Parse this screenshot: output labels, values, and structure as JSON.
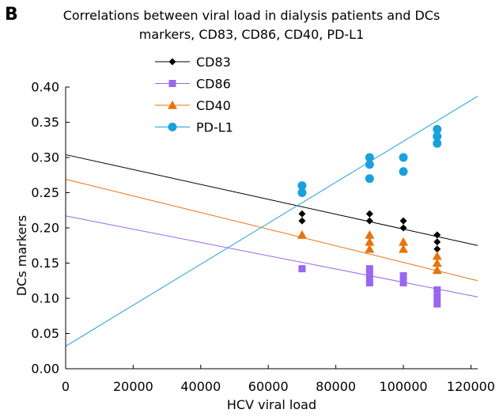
{
  "panel_label": "B",
  "chart_data": {
    "type": "scatter",
    "title_lines": [
      "Correlations between viral load in dialysis patients and DCs",
      "markers, CD83, CD86, CD40, PD-L1"
    ],
    "xlabel": "HCV viral load",
    "ylabel": "DCs markers",
    "xlim": [
      0,
      122000
    ],
    "ylim": [
      0,
      0.4
    ],
    "x_ticks": [
      0,
      20000,
      40000,
      60000,
      80000,
      100000,
      120000
    ],
    "x_tick_labels": [
      "0",
      "20000",
      "40000",
      "60000",
      "80000",
      "100000",
      "120000"
    ],
    "y_ticks": [
      0,
      0.05,
      0.1,
      0.15,
      0.2,
      0.25,
      0.3,
      0.35,
      0.4
    ],
    "y_tick_labels": [
      "0.00",
      "0.05",
      "0.10",
      "0.15",
      "0.20",
      "0.25",
      "0.30",
      "0.35",
      "0.40"
    ],
    "grid": false,
    "legend_position": "top-left",
    "series": [
      {
        "name": "CD83",
        "marker": "diamond",
        "color": "#000000",
        "points": [
          [
            70000,
            0.22
          ],
          [
            70000,
            0.21
          ],
          [
            90000,
            0.22
          ],
          [
            90000,
            0.22
          ],
          [
            90000,
            0.21
          ],
          [
            100000,
            0.21
          ],
          [
            100000,
            0.2
          ],
          [
            110000,
            0.19
          ],
          [
            110000,
            0.18
          ],
          [
            110000,
            0.17
          ]
        ],
        "trend": [
          [
            0,
            0.304
          ],
          [
            122000,
            0.175
          ]
        ]
      },
      {
        "name": "CD86",
        "marker": "square",
        "color": "#9966ee",
        "points": [
          [
            70000,
            0.142
          ],
          [
            90000,
            0.142
          ],
          [
            90000,
            0.132
          ],
          [
            90000,
            0.122
          ],
          [
            100000,
            0.132
          ],
          [
            100000,
            0.122
          ],
          [
            110000,
            0.112
          ],
          [
            110000,
            0.102
          ],
          [
            110000,
            0.092
          ]
        ],
        "trend": [
          [
            0,
            0.217
          ],
          [
            122000,
            0.102
          ]
        ]
      },
      {
        "name": "CD40",
        "marker": "triangle",
        "color": "#e8720c",
        "points": [
          [
            70000,
            0.19
          ],
          [
            90000,
            0.19
          ],
          [
            90000,
            0.18
          ],
          [
            90000,
            0.17
          ],
          [
            100000,
            0.18
          ],
          [
            100000,
            0.17
          ],
          [
            110000,
            0.16
          ],
          [
            110000,
            0.15
          ],
          [
            110000,
            0.14
          ]
        ],
        "trend": [
          [
            0,
            0.269
          ],
          [
            122000,
            0.125
          ]
        ]
      },
      {
        "name": "PD-L1",
        "marker": "circle",
        "color": "#1aa0dd",
        "points": [
          [
            70000,
            0.26
          ],
          [
            70000,
            0.25
          ],
          [
            90000,
            0.3
          ],
          [
            90000,
            0.29
          ],
          [
            90000,
            0.27
          ],
          [
            100000,
            0.3
          ],
          [
            100000,
            0.28
          ],
          [
            110000,
            0.34
          ],
          [
            110000,
            0.33
          ],
          [
            110000,
            0.32
          ]
        ],
        "trend": [
          [
            0,
            0.032
          ],
          [
            122000,
            0.387
          ]
        ]
      }
    ]
  }
}
